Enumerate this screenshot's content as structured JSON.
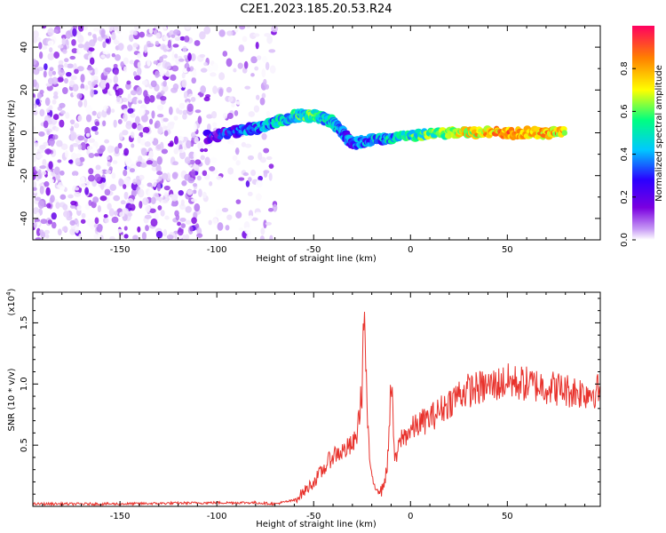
{
  "title": "C2E1.2023.185.20.53.R24",
  "colors": {
    "line": "#e8322c",
    "axis": "#000000",
    "scatter_base": "#7b2fe0"
  },
  "chart_data": [
    {
      "type": "heatmap",
      "xlabel": "Height of straight line (km)",
      "ylabel": "Frequency (Hz)",
      "xlim": [
        -195,
        98
      ],
      "ylim": [
        -50,
        50
      ],
      "x_ticks": [
        -150,
        -100,
        -50,
        0,
        50
      ],
      "y_ticks": [
        -40,
        -20,
        0,
        20,
        40
      ],
      "colorbar": {
        "label": "Normalized spectral amplitude",
        "range": [
          0.0,
          1.0
        ],
        "ticks": [
          "0.0",
          "0.2",
          "0.4",
          "0.6",
          "0.8"
        ],
        "colormap": [
          "#ffffff",
          "#c79bf5",
          "#7b00e0",
          "#2b00ff",
          "#00c8ff",
          "#00ff80",
          "#ffff00",
          "#ff8000",
          "#ff0040"
        ]
      },
      "description_points": [
        {
          "x": -105,
          "y": -2,
          "amp": 0.3
        },
        {
          "x": -80,
          "y": 2,
          "amp": 0.45
        },
        {
          "x": -60,
          "y": 8,
          "amp": 0.55
        },
        {
          "x": -50,
          "y": 8,
          "amp": 0.6
        },
        {
          "x": -40,
          "y": 5,
          "amp": 0.5
        },
        {
          "x": -30,
          "y": -5,
          "amp": 0.4
        },
        {
          "x": -10,
          "y": -2,
          "amp": 0.5
        },
        {
          "x": 20,
          "y": 0,
          "amp": 0.7
        },
        {
          "x": 50,
          "y": 0,
          "amp": 0.85
        },
        {
          "x": 80,
          "y": 0,
          "amp": 0.8
        }
      ]
    },
    {
      "type": "line",
      "xlabel": "Height of straight line (km)",
      "ylabel": "SNR (10 * v/v)",
      "y_multiplier": "(x10",
      "y_multiplier_exp": "4",
      "y_multiplier_close": ")",
      "xlim": [
        -195,
        98
      ],
      "ylim": [
        0,
        1.75
      ],
      "x_ticks": [
        -150,
        -100,
        -50,
        0,
        50
      ],
      "y_ticks": [
        0.5,
        1.0,
        1.5
      ],
      "y_tick_labels": [
        "0.5",
        "1.0",
        "1.5"
      ],
      "series": [
        {
          "x": [
            -195,
            -150,
            -100,
            -80,
            -70,
            -60,
            -55,
            -50,
            -45,
            -40,
            -35,
            -30,
            -28,
            -25,
            -24,
            -22,
            -20,
            -15,
            -12,
            -10,
            -8,
            -5,
            0,
            5,
            10,
            15,
            20,
            25,
            30,
            40,
            50,
            60,
            70,
            80,
            90,
            98
          ],
          "y": [
            0.02,
            0.02,
            0.03,
            0.03,
            0.02,
            0.05,
            0.12,
            0.2,
            0.3,
            0.42,
            0.45,
            0.5,
            0.55,
            0.95,
            1.65,
            0.6,
            0.2,
            0.12,
            0.3,
            1.05,
            0.35,
            0.55,
            0.62,
            0.68,
            0.72,
            0.78,
            0.85,
            0.92,
            0.95,
            0.98,
            1.02,
            1.0,
            0.98,
            0.95,
            0.93,
            0.95
          ]
        }
      ]
    }
  ]
}
